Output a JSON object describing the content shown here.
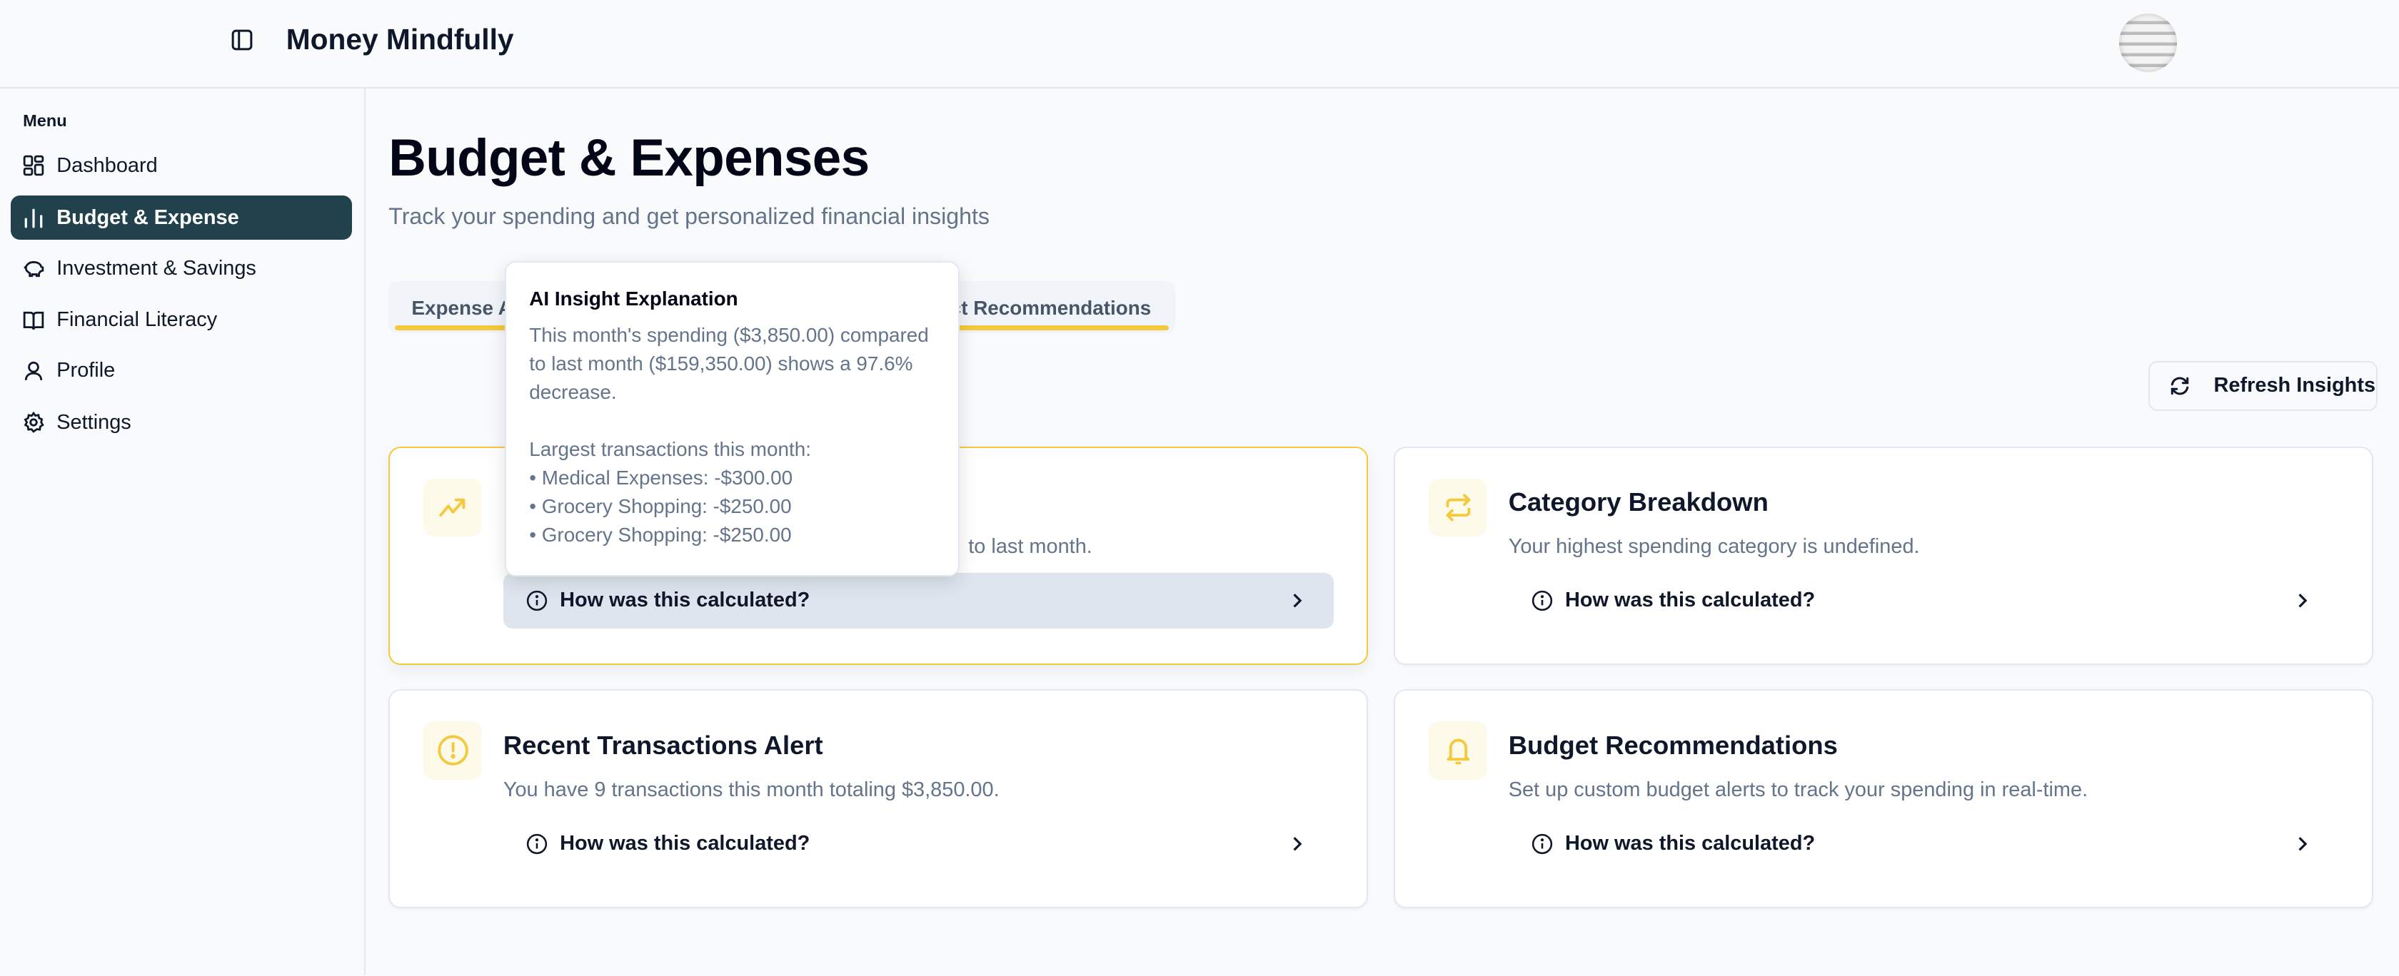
{
  "app": {
    "title": "Money Mindfully"
  },
  "sidebar": {
    "menu_label": "Menu",
    "items": [
      {
        "label": "Dashboard",
        "icon": "dashboard-icon"
      },
      {
        "label": "Budget & Expense",
        "icon": "bar-chart-icon",
        "active": true
      },
      {
        "label": "Investment & Savings",
        "icon": "piggy-bank-icon"
      },
      {
        "label": "Financial Literacy",
        "icon": "book-icon"
      },
      {
        "label": "Profile",
        "icon": "user-icon"
      },
      {
        "label": "Settings",
        "icon": "gear-icon"
      }
    ]
  },
  "page": {
    "title": "Budget & Expenses",
    "subtitle": "Track your spending and get personalized financial insights"
  },
  "tabs": [
    {
      "label": "Expense A"
    },
    {
      "label": "ct Recommendations"
    }
  ],
  "refresh_label": "Refresh Insights",
  "cards": [
    {
      "title": "",
      "description": "to last month.",
      "calc_label": "How was this calculated?",
      "icon": "trending-up-icon"
    },
    {
      "title": "Category Breakdown",
      "description": "Your highest spending category is undefined.",
      "calc_label": "How was this calculated?",
      "icon": "repeat-icon"
    },
    {
      "title": "Recent Transactions Alert",
      "description": "You have 9 transactions this month totaling $3,850.00.",
      "calc_label": "How was this calculated?",
      "icon": "alert-circle-icon"
    },
    {
      "title": "Budget Recommendations",
      "description": "Set up custom budget alerts to track your spending in real-time.",
      "calc_label": "How was this calculated?",
      "icon": "bell-icon"
    }
  ],
  "tooltip": {
    "title": "AI Insight Explanation",
    "lines": [
      "This month's spending ($3,850.00) compared",
      "to last month ($159,350.00) shows a 97.6%",
      "decrease.",
      "",
      "Largest transactions this month:",
      "• Medical Expenses: -$300.00",
      "• Grocery Shopping: -$250.00",
      "• Grocery Shopping: -$250.00"
    ]
  },
  "colors": {
    "accent": "#f5c93e",
    "active_nav": "#21424d",
    "muted_text": "#64748b"
  }
}
